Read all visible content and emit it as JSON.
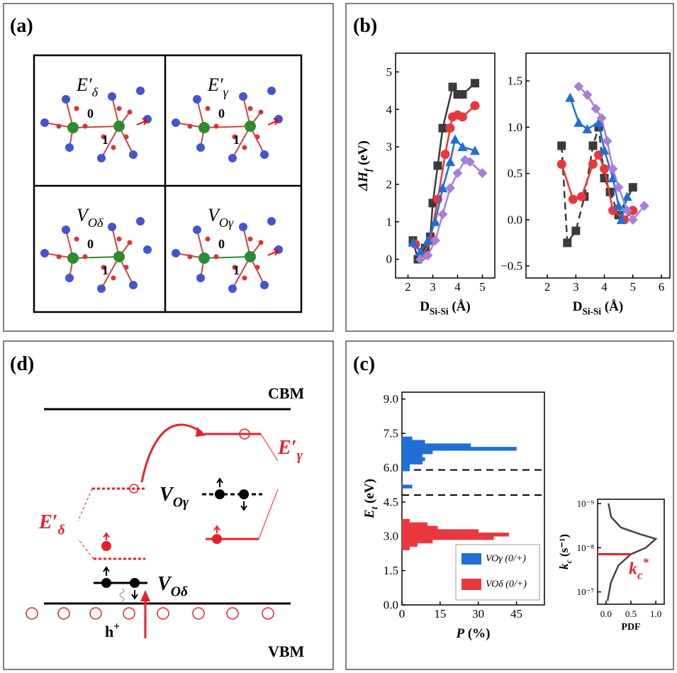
{
  "panel_labels": {
    "a": "(a)",
    "b": "(b)",
    "d": "(d)",
    "c": "(c)"
  },
  "structures": [
    {
      "label": {
        "base": "E′",
        "sub": "δ"
      },
      "atoms": [
        "0",
        "1"
      ]
    },
    {
      "label": {
        "base": "E′",
        "sub": "γ"
      },
      "atoms": [
        "0",
        "1"
      ]
    },
    {
      "label": {
        "base": "V",
        "sub": "Oδ"
      },
      "atoms": [
        "0",
        "1"
      ]
    },
    {
      "label": {
        "base": "V",
        "sub": "Oγ"
      },
      "atoms": [
        "0",
        "1"
      ]
    }
  ],
  "chart_data": [
    {
      "type": "line",
      "xlabel": {
        "base": "D",
        "sub": "Si-Si",
        "rest": " (Å)"
      },
      "ylabel": {
        "base": "ΔH",
        "sub": "f",
        "rest": " (eV)"
      },
      "xlim": [
        1.5,
        5.5
      ],
      "xticks": [
        2,
        3,
        4,
        5
      ],
      "ylim": [
        -0.5,
        5.5
      ],
      "yticks": [
        0,
        1,
        2,
        3,
        4,
        5
      ],
      "series": [
        {
          "color": "#3a3a3a",
          "marker": "square",
          "x": [
            2.2,
            2.4,
            2.7,
            2.9,
            3.0,
            3.2,
            3.4,
            3.8,
            4.0,
            4.2,
            4.7
          ],
          "values": [
            0.5,
            0,
            0.3,
            0.6,
            1.5,
            2.5,
            3.5,
            4.6,
            4.4,
            4.4,
            4.7
          ]
        },
        {
          "color": "#e8383d",
          "marker": "circle",
          "x": [
            2.3,
            2.6,
            2.9,
            3.2,
            3.5,
            3.7,
            3.8,
            4.0,
            4.2,
            4.7
          ],
          "values": [
            0.4,
            0.1,
            0.5,
            1.6,
            2.8,
            3.5,
            3.8,
            3.85,
            3.8,
            4.1
          ]
        },
        {
          "color": "#1f6fd6",
          "marker": "triangle",
          "x": [
            2.2,
            2.5,
            2.8,
            3.1,
            3.4,
            3.7,
            3.9,
            4.2,
            4.7
          ],
          "values": [
            0.45,
            0.2,
            0.5,
            1.0,
            1.9,
            2.6,
            3.2,
            3.0,
            2.9
          ]
        },
        {
          "color": "#a77fd8",
          "marker": "diamond",
          "x": [
            2.5,
            2.8,
            3.1,
            3.4,
            3.7,
            4.0,
            4.3,
            4.5,
            5.0
          ],
          "values": [
            0,
            0.1,
            0.5,
            1.2,
            1.9,
            2.3,
            2.65,
            2.6,
            2.3
          ]
        }
      ]
    },
    {
      "type": "line",
      "xlabel": {
        "base": "D",
        "sub": "Si-Si",
        "rest": " (Å)"
      },
      "xlim": [
        1.25,
        6.3
      ],
      "xticks": [
        2,
        3,
        4,
        5,
        6
      ],
      "ylim": [
        -0.63,
        1.8
      ],
      "yticks": [
        {
          "value": -0.5,
          "label": "−0.5"
        },
        {
          "value": 0,
          "label": "0.0"
        },
        {
          "value": 0.5,
          "label": "0.5"
        },
        {
          "value": 1,
          "label": "1.0"
        },
        {
          "value": 1.5,
          "label": "1.5"
        }
      ],
      "series": [
        {
          "color": "#3a3a3a",
          "marker": "square",
          "dashed": true,
          "x": [
            2.5,
            2.7,
            3.0,
            3.3,
            3.6,
            3.8,
            4.0,
            4.2,
            4.5,
            5.0
          ],
          "values": [
            0.8,
            -0.25,
            -0.12,
            0.25,
            0.8,
            1.0,
            0.45,
            0.3,
            0.05,
            0.35
          ]
        },
        {
          "color": "#e8383d",
          "marker": "circle",
          "x": [
            2.5,
            2.9,
            3.2,
            3.6,
            3.8,
            4.0,
            4.3,
            4.7,
            5.0
          ],
          "values": [
            0.6,
            0.22,
            0.25,
            0.6,
            0.7,
            0.55,
            0.1,
            0.0,
            0.1
          ]
        },
        {
          "color": "#1f6fd6",
          "marker": "triangle",
          "x": [
            2.8,
            3.1,
            3.4,
            3.8,
            4.0,
            4.3,
            4.5,
            4.6,
            4.8
          ],
          "values": [
            1.32,
            1.05,
            0.98,
            1.05,
            0.75,
            0.45,
            0.15,
            0.0,
            0.25
          ]
        },
        {
          "color": "#a77fd8",
          "marker": "diamond",
          "x": [
            3.1,
            3.4,
            3.7,
            3.9,
            4.1,
            4.3,
            4.5,
            4.8,
            5.0,
            5.4
          ],
          "values": [
            1.44,
            1.35,
            1.2,
            1.1,
            0.85,
            0.55,
            0.35,
            0.1,
            0.0,
            0.15
          ]
        }
      ]
    },
    {
      "type": "histogram",
      "orientation": "horizontal",
      "xlabel": {
        "base": "P",
        "rest": " (%)"
      },
      "ylabel": {
        "base": "E",
        "sub": "t",
        "rest": " (eV)"
      },
      "xlim": [
        0,
        56
      ],
      "xticks": [
        0,
        15,
        30,
        45
      ],
      "ylim": [
        0,
        9.3
      ],
      "yticks": [
        {
          "value": 0,
          "label": "0.0"
        },
        1.5,
        {
          "value": 3,
          "label": "3.0"
        },
        4.5,
        {
          "value": 6,
          "label": "6.0"
        },
        7.5,
        {
          "value": 9,
          "label": "9.0"
        }
      ],
      "hlines": [
        5.9,
        4.8
      ],
      "legend": "lower right",
      "series": [
        {
          "name": "VOγ (0/+)",
          "color": "#1f6fd6",
          "bins": [
            5.1,
            5.25,
            5.4,
            5.55,
            5.7,
            5.85,
            6.0,
            6.15,
            6.3,
            6.45,
            6.6,
            6.75,
            6.9,
            7.05,
            7.2,
            7.35,
            7.5
          ],
          "values": [
            4,
            0,
            0,
            0,
            0,
            3,
            3,
            8,
            9,
            8,
            12,
            45,
            27,
            9,
            4,
            0
          ]
        },
        {
          "name": "VOδ (0/+)",
          "color": "#e8383d",
          "bins": [
            2.4,
            2.55,
            2.7,
            2.85,
            3.0,
            3.15,
            3.3,
            3.45,
            3.6,
            3.75,
            3.9
          ],
          "values": [
            3,
            6,
            12,
            36,
            42,
            30,
            14,
            10,
            3,
            0
          ]
        }
      ]
    },
    {
      "type": "line",
      "log_y": true,
      "xlabel": "PDF",
      "ylabel": {
        "base": "k",
        "sub": "c",
        "rest": " (s⁻¹)"
      },
      "xlim": [
        -0.17,
        1.17
      ],
      "xticks": [
        {
          "value": 0,
          "label": "0.0"
        },
        0.5,
        {
          "value": 1,
          "label": "1.0"
        }
      ],
      "ylim": [
        1.9e-07,
        8e-10
      ],
      "yticks": [
        {
          "value": 1e-09,
          "label": "10⁻⁹"
        },
        {
          "value": 1e-08,
          "label": "10⁻⁸"
        },
        {
          "value": 1e-07,
          "label": "10⁻⁷"
        }
      ],
      "series": [
        {
          "color": "#444444",
          "x": [
            0.05,
            0.1,
            0.3,
            0.7,
            1.0,
            0.8,
            0.5,
            0.25,
            0.1,
            0.03
          ],
          "values": [
            1e-09,
            2e-09,
            3.5e-09,
            5e-09,
            6.3e-09,
            1e-08,
            1.4e-08,
            2.5e-08,
            6e-08,
            1.6e-07
          ]
        }
      ],
      "threshold": {
        "value": 1.4e-08,
        "label": {
          "base": "k",
          "sub": "c",
          "sup": "*"
        },
        "color": "#e8202a"
      }
    }
  ],
  "level_diagram": {
    "cbm": "CBM",
    "vbm": "VBM",
    "hole": {
      "base": "h",
      "sup": "+"
    },
    "v_o_delta": {
      "base": "V",
      "sub": "Oδ"
    },
    "v_o_gamma": {
      "base": "V",
      "sub": "Oγ"
    },
    "e_delta": {
      "base": "E′",
      "sub": "δ"
    },
    "e_gamma": {
      "base": "E′",
      "sub": "γ"
    }
  }
}
